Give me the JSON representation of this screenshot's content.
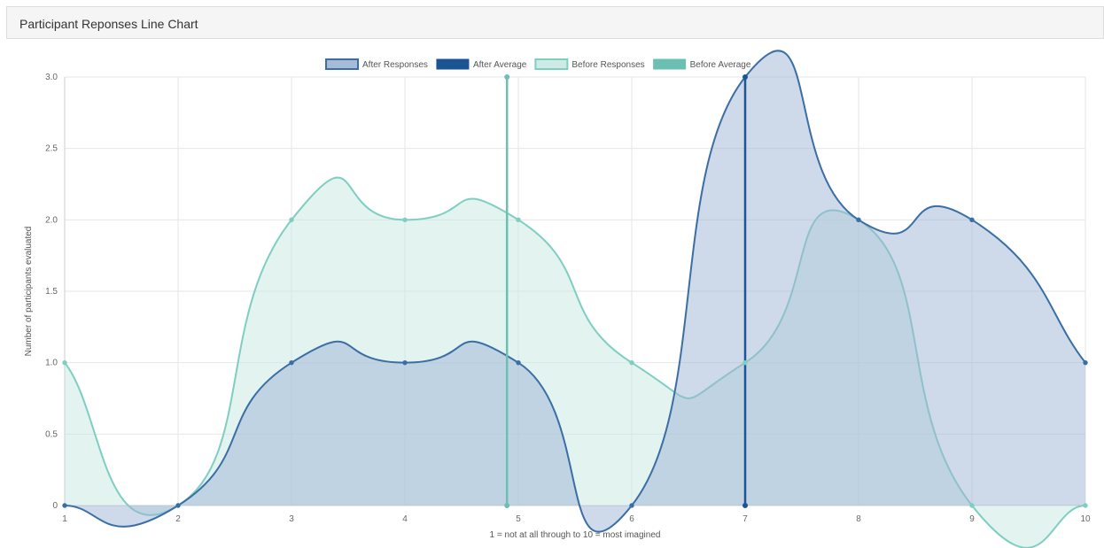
{
  "panel": {
    "title": "Participant Reponses Line Chart"
  },
  "chart_data": {
    "type": "line",
    "smooth": true,
    "filled": true,
    "grid": true,
    "legend_placement": "top-center",
    "title": "",
    "xlabel": "1 = not at all through to 10 = most imagined",
    "ylabel": "Number of participants evaluated",
    "x": [
      1,
      2,
      3,
      4,
      5,
      6,
      7,
      8,
      9,
      10
    ],
    "x_tick_labels": [
      "1",
      "2",
      "3",
      "4",
      "5",
      "6",
      "7",
      "8",
      "9",
      "10"
    ],
    "xlim": [
      1,
      10
    ],
    "ylim": [
      0,
      3
    ],
    "y_ticks": [
      0,
      0.5,
      1.0,
      1.5,
      2.0,
      2.5,
      3.0
    ],
    "y_tick_labels": [
      "0",
      "0.5",
      "1.0",
      "1.5",
      "2.0",
      "2.5",
      "3.0"
    ],
    "series": [
      {
        "name": "After Responses",
        "kind": "area",
        "values": [
          0,
          0,
          1,
          1,
          1,
          0,
          3,
          2,
          2,
          1
        ],
        "stroke": "#3a6ea5",
        "fill": "#9db4d3",
        "fill_opacity": 0.5
      },
      {
        "name": "After Average",
        "kind": "vertical-line",
        "x_value": 7,
        "points": [
          {
            "x": 7,
            "y": 0
          },
          {
            "x": 7,
            "y": 3
          }
        ],
        "stroke": "#1c5593",
        "fill": "#1c5593"
      },
      {
        "name": "Before Responses",
        "kind": "area",
        "values": [
          1,
          0,
          2,
          2,
          2,
          1,
          1,
          2,
          0,
          0
        ],
        "stroke": "#7ecec2",
        "fill": "#c8e8e2",
        "fill_opacity": 0.5
      },
      {
        "name": "Before Average",
        "kind": "vertical-line",
        "x_value": 4.9,
        "points": [
          {
            "x": 4.9,
            "y": 0
          },
          {
            "x": 4.9,
            "y": 3
          }
        ],
        "stroke": "#6cc0b3",
        "fill": "#6cc0b3"
      }
    ]
  }
}
